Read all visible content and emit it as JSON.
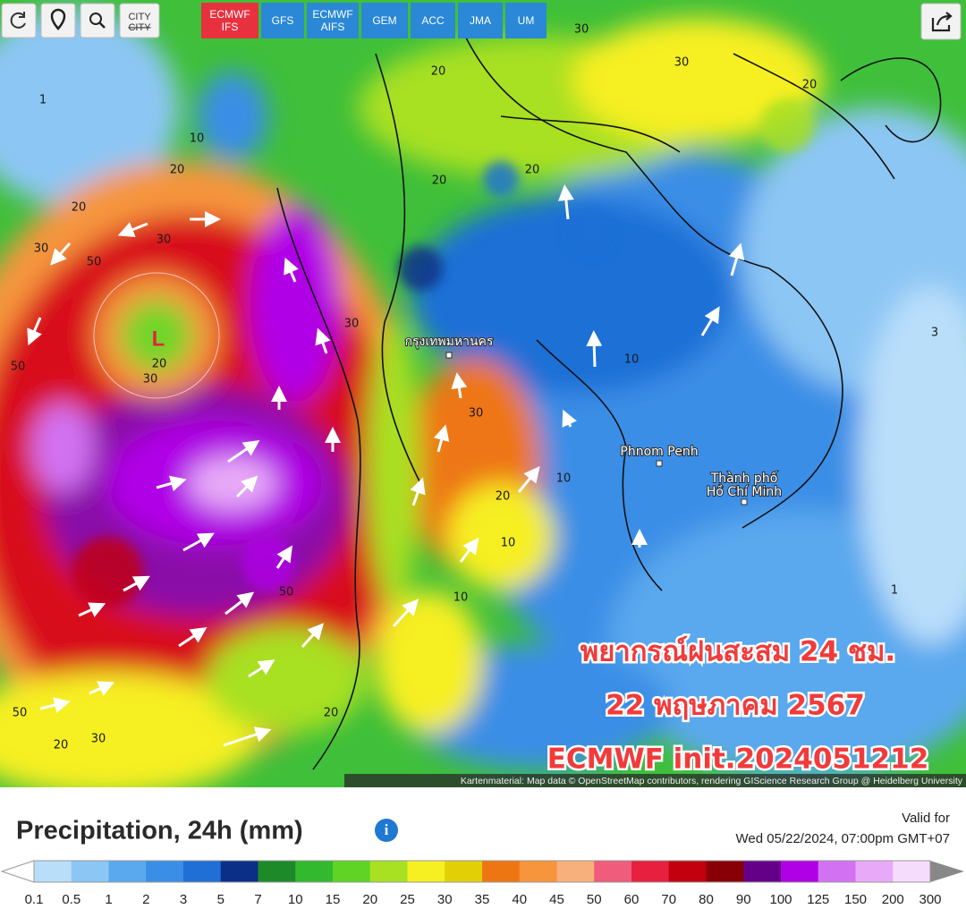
{
  "toolbar": {
    "city_button": "CITY",
    "models": [
      {
        "lines": [
          "ECMWF",
          "IFS"
        ],
        "active": true
      },
      {
        "lines": [
          "GFS"
        ],
        "active": false
      },
      {
        "lines": [
          "ECMWF",
          "AIFS"
        ],
        "active": false
      },
      {
        "lines": [
          "GEM"
        ],
        "active": false
      },
      {
        "lines": [
          "ACC"
        ],
        "active": false
      },
      {
        "lines": [
          "JMA"
        ],
        "active": false
      },
      {
        "lines": [
          "UM"
        ],
        "active": false
      }
    ]
  },
  "map": {
    "low_marker": "L",
    "places": {
      "bangkok": "กรุงเทพมหานคร",
      "phnom_penh": "Phnom Penh",
      "hcmc": [
        "Thành phố",
        "Hồ Chí Minh"
      ]
    },
    "contour_labels": [
      1,
      10,
      20,
      20,
      30,
      30,
      50,
      20,
      30,
      50,
      30,
      20,
      20,
      10,
      10,
      20,
      10,
      10,
      30,
      20,
      50,
      20,
      30,
      50,
      1,
      3,
      20,
      30,
      30,
      20
    ],
    "overlay": [
      "พยากรณ์ฝนสะสม 24 ชม.",
      "22 พฤษภาคม 2567",
      "ECMWF init.2024051212"
    ],
    "attribution": "Kartenmaterial: Map data © OpenStreetMap contributors, rendering GIScience Research Group @ Heidelberg University"
  },
  "legend": {
    "title": "Precipitation, 24h (mm)",
    "valid_for": "Valid for",
    "valid_time": "Wed 05/22/2024, 07:00pm GMT+07",
    "scale_labels": [
      0.1,
      0.5,
      1,
      2,
      3,
      5,
      7,
      10,
      15,
      20,
      25,
      30,
      35,
      40,
      45,
      50,
      60,
      70,
      80,
      90,
      100,
      125,
      150,
      200,
      300
    ],
    "under_color": "#ffffff",
    "over_color": "#888888",
    "colors": [
      "#b9defa",
      "#8cc6f4",
      "#5aa8ee",
      "#3a8ee6",
      "#1f6fd6",
      "#0b2f86",
      "#1d8a2a",
      "#33b92e",
      "#5fd424",
      "#a8e022",
      "#f6ef22",
      "#e2cf06",
      "#ee7612",
      "#f6953c",
      "#f7b07c",
      "#ef5c7c",
      "#e6203e",
      "#c2000e",
      "#880006",
      "#640088",
      "#b000e6",
      "#d272f2",
      "#e8aaf8",
      "#f6dcfc"
    ]
  }
}
